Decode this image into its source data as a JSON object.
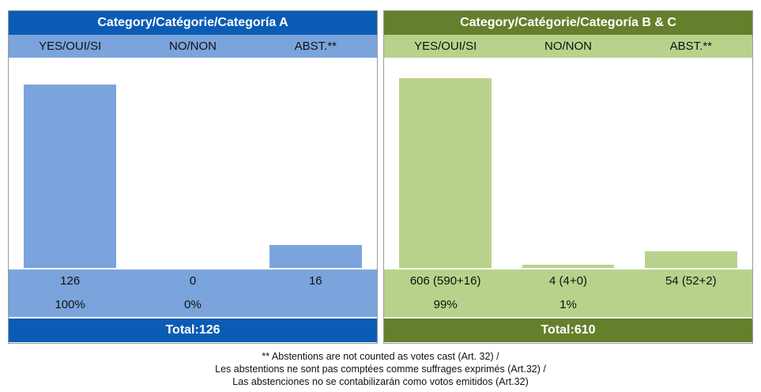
{
  "chart_data": {
    "type": "bar",
    "panels": [
      {
        "title": "Category/Catégorie/Categoría A",
        "categories": [
          "YES/OUI/SI",
          "NO/NON",
          "ABST.**"
        ],
        "values": [
          126,
          0,
          16
        ],
        "value_labels": [
          "126",
          "0",
          "16"
        ],
        "percent_labels": [
          "100%",
          "0%",
          ""
        ],
        "total": "Total:126",
        "colors": {
          "header": "#0b5cb5",
          "light": "#7ba4dc",
          "bar": "#7ba4dc"
        }
      },
      {
        "title": "Category/Catégorie/Categoría B & C",
        "categories": [
          "YES/OUI/SI",
          "NO/NON",
          "ABST.**"
        ],
        "values": [
          606,
          4,
          54
        ],
        "value_labels": [
          "606 (590+16)",
          "4 (4+0)",
          "54 (52+2)"
        ],
        "percent_labels": [
          "99%",
          "1%",
          ""
        ],
        "total": "Total:610",
        "colors": {
          "header": "#657f2c",
          "light": "#b9d28b",
          "bar": "#b9d28b"
        }
      }
    ],
    "footnote": [
      "** Abstentions are not counted as votes cast (Art. 32) /",
      "Les abstentions ne sont pas comptées comme suffrages exprimés (Art.32) /",
      "Las abstenciones no se contabilizarán como votos emitidos (Art.32)"
    ]
  }
}
